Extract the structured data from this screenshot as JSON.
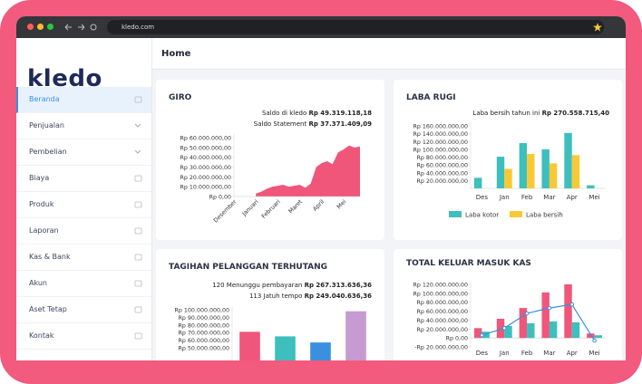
{
  "browser": {
    "url": "kledo.com"
  },
  "sidebar": {
    "logo": "kledo",
    "menu": [
      "Beranda",
      "Penjualan",
      "Pembelian",
      "Biaya",
      "Produk",
      "Laporan",
      "Kas & Bank",
      "Akun",
      "Aset Tetap",
      "Kontak"
    ]
  },
  "header": {
    "title": "Home"
  },
  "cards": [
    {
      "title": "GIRO",
      "notes": [
        {
          "label": "Saldo di kledo",
          "amount": "Rp 49.319.118,18"
        },
        {
          "label": "Saldo Statement",
          "amount": "Rp 37.371.409,09"
        }
      ],
      "chart": {
        "type": "area",
        "color": "#f0567a",
        "categories": [
          "Desember",
          null,
          null,
          null,
          "Januari",
          null,
          null,
          null,
          "Februari",
          null,
          null,
          null,
          "Maret",
          null,
          null,
          null,
          "April",
          null,
          null,
          null,
          "Mei",
          null,
          null,
          null
        ],
        "values": [
          null,
          null,
          null,
          null,
          3000000,
          5000000,
          8000000,
          10000000,
          11000000,
          12000000,
          10000000,
          11000000,
          12000000,
          9000000,
          13000000,
          30000000,
          34000000,
          36000000,
          33000000,
          45000000,
          48000000,
          52000000,
          50000000,
          51000000
        ],
        "ylim": [
          0,
          60000000
        ],
        "yticks": [
          {
            "value": 0,
            "label": "Rp 0,00"
          },
          {
            "value": 10000000,
            "label": "Rp 10.000.000,00"
          },
          {
            "value": 20000000,
            "label": "Rp 20.000.000,00"
          },
          {
            "value": 30000000,
            "label": "Rp 30.000.000,00"
          },
          {
            "value": 40000000,
            "label": "Rp 40.000.000,00"
          },
          {
            "value": 50000000,
            "label": "Rp 50.000.000,00"
          },
          {
            "value": 60000000,
            "label": "Rp 60.000.000,00"
          }
        ],
        "grid": false
      }
    },
    {
      "title": "LABA RUGI",
      "notes": [
        {
          "label": "Laba bersih tahun ini",
          "amount": "Rp 270.558.715,40"
        }
      ],
      "chart": {
        "type": "bar",
        "categories": [
          "Des",
          "Jan",
          "Feb",
          "Mar",
          "Apr",
          "Mei"
        ],
        "series": [
          {
            "name": "Laba kotor",
            "color": "#3dbfbd",
            "values": [
              27000000,
              81000000,
              116000000,
              100000000,
              142000000,
              8000000
            ]
          },
          {
            "name": "Laba bersih",
            "color": "#f8c935",
            "values": [
              0,
              50000000,
              88000000,
              64000000,
              85000000,
              0
            ]
          }
        ],
        "ylim": [
          0,
          160000000
        ],
        "yticks": [
          {
            "value": 20000000,
            "label": "Rp 20.000.000,00"
          },
          {
            "value": 40000000,
            "label": "Rp 40.000.000,00"
          },
          {
            "value": 60000000,
            "label": "Rp 60.000.000,00"
          },
          {
            "value": 80000000,
            "label": "Rp 80.000.000,00"
          },
          {
            "value": 100000000,
            "label": "Rp 100.000.000,00"
          },
          {
            "value": 120000000,
            "label": "Rp 120.000.000,00"
          },
          {
            "value": 140000000,
            "label": "Rp 140.000.000,00"
          },
          {
            "value": 160000000,
            "label": "Rp 160.000.000,00"
          }
        ],
        "grid": false,
        "legend": "bottom"
      }
    },
    {
      "title": "TAGIHAN PELANGGAN TERHUTANG",
      "notes": [
        {
          "label": "120 Menunggu pembayaran",
          "amount": "Rp 267.313.636,36"
        },
        {
          "label": "113 Jatuh tempo",
          "amount": "Rp 249.040.636,36"
        }
      ],
      "chart": {
        "type": "bar",
        "categories": [
          null,
          null,
          null,
          null
        ],
        "values": [
          71000000,
          65000000,
          57000000,
          98000000
        ],
        "colors": [
          "#f0567a",
          "#3dbfbd",
          "#3a8fdf",
          "#c59bd2"
        ],
        "ylim": [
          0,
          100000000
        ],
        "yticks": [
          {
            "value": 50000000,
            "label": "Rp 50.000.000,00"
          },
          {
            "value": 60000000,
            "label": "Rp 60.000.000,00"
          },
          {
            "value": 70000000,
            "label": "Rp 70.000.000,00"
          },
          {
            "value": 80000000,
            "label": "Rp 80.000.000,00"
          },
          {
            "value": 90000000,
            "label": "Rp 90.000.000,00"
          },
          {
            "value": 100000000,
            "label": "Rp 100.000.000,00"
          }
        ],
        "grid": false
      }
    },
    {
      "title": "TOTAL KELUAR MASUK KAS",
      "chart": {
        "type": "bar",
        "categories": [
          "Des",
          "Jan",
          "Feb",
          "Mar",
          "Apr",
          "Mei"
        ],
        "series": [
          {
            "color": "#f0567a",
            "values": [
              22000000,
              43000000,
              67000000,
              102000000,
              120000000,
              10000000
            ]
          },
          {
            "color": "#3dbfbd",
            "values": [
              14000000,
              27000000,
              33000000,
              37000000,
              35000000,
              6000000
            ]
          },
          {
            "type": "line",
            "color": "#3a8fdf",
            "values": [
              6000000,
              22000000,
              55000000,
              67000000,
              75000000,
              -6000000
            ]
          }
        ],
        "ylim": [
          -20000000,
          120000000
        ],
        "yticks": [
          {
            "value": -20000000,
            "label": "-Rp 20.000.000,00"
          },
          {
            "value": 0,
            "label": "Rp 0,00"
          },
          {
            "value": 20000000,
            "label": "Rp 20.000.000,00"
          },
          {
            "value": 40000000,
            "label": "Rp 40.000.000,00"
          },
          {
            "value": 60000000,
            "label": "Rp 60.000.000,00"
          },
          {
            "value": 80000000,
            "label": "Rp 80.000.000,00"
          },
          {
            "value": 100000000,
            "label": "Rp 100.000.000,00"
          },
          {
            "value": 120000000,
            "label": "Rp 120.000.000,00"
          }
        ],
        "grid": false
      }
    }
  ]
}
